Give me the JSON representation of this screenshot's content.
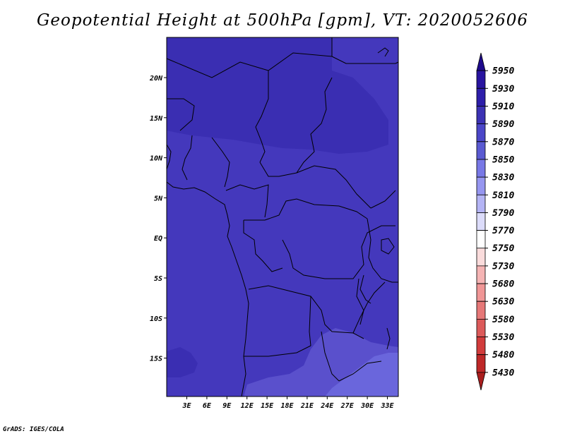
{
  "title": "Geopotential Height at 500hPa [gpm], VT: 2020052606",
  "credit": "GrADS: IGES/COLA",
  "map": {
    "lon_labels": [
      "3E",
      "6E",
      "9E",
      "12E",
      "15E",
      "18E",
      "21E",
      "24E",
      "27E",
      "30E",
      "33E"
    ],
    "lat_labels": [
      "20N",
      "15N",
      "10N",
      "5N",
      "EQ",
      "5S",
      "10S",
      "15S"
    ]
  },
  "colorbar": {
    "levels": [
      "5950",
      "5930",
      "5910",
      "5890",
      "5870",
      "5850",
      "5830",
      "5810",
      "5790",
      "5770",
      "5750",
      "5730",
      "5680",
      "5630",
      "5580",
      "5530",
      "5480",
      "5430"
    ],
    "colors": [
      "#1e0a8c",
      "#2814a0",
      "#2d1eaa",
      "#3c32b4",
      "#4b46c8",
      "#5a5ad2",
      "#7878e6",
      "#9696f0",
      "#b4b4f5",
      "#dcdcfa",
      "#ffffff",
      "#fadcdc",
      "#f5b4b4",
      "#f09696",
      "#e67878",
      "#dc5a5a",
      "#d23c3c",
      "#be2828",
      "#aa1e1e"
    ]
  },
  "field": {
    "colors": {
      "c5910": "#3a2eb2",
      "c5890": "#4438bc",
      "c5870": "#5a50cc",
      "c5850": "#6a66dc"
    }
  }
}
